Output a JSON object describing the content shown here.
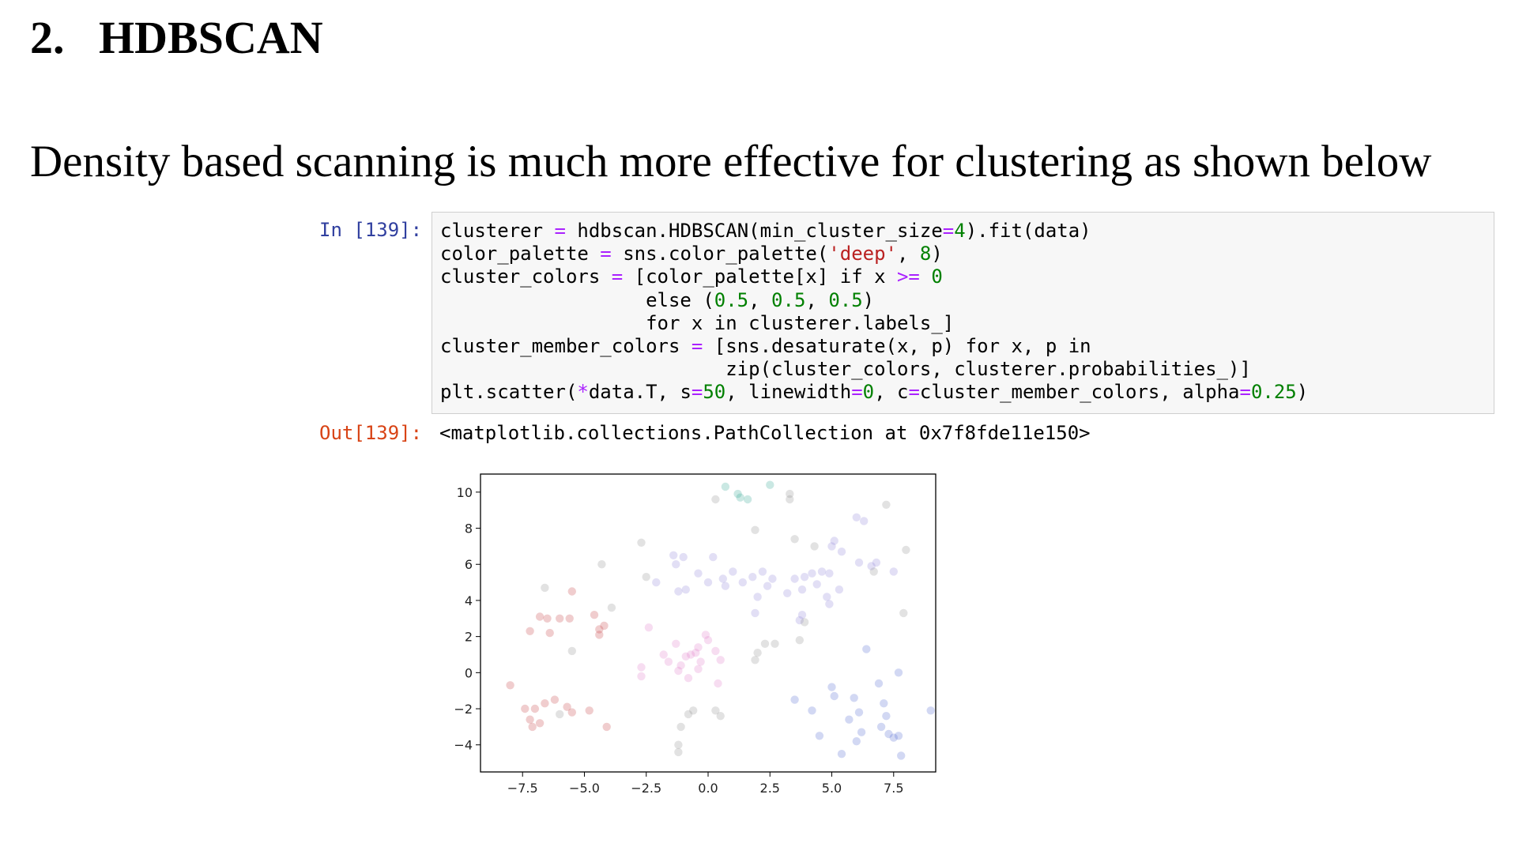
{
  "section": {
    "number": "2.",
    "title": "HDBSCAN"
  },
  "intro_text": "Density based scanning is much more effective for clustering as shown below",
  "cell_in": {
    "prompt": "In [139]:",
    "code_lines": [
      "clusterer = hdbscan.HDBSCAN(min_cluster_size=4).fit(data)",
      "color_palette = sns.color_palette('deep', 8)",
      "cluster_colors = [color_palette[x] if x >= 0",
      "                  else (0.5, 0.5, 0.5)",
      "                  for x in clusterer.labels_]",
      "cluster_member_colors = [sns.desaturate(x, p) for x, p in",
      "                         zip(cluster_colors, clusterer.probabilities_)]",
      "plt.scatter(*data.T, s=50, linewidth=0, c=cluster_member_colors, alpha=0.25)"
    ]
  },
  "cell_out": {
    "prompt": "Out[139]:",
    "text": "<matplotlib.collections.PathCollection at 0x7f8fde11e150>"
  },
  "colors": {
    "noise": "#8a8a8a",
    "pink": "#e077c9",
    "purple": "#8a80d8",
    "blue": "#4c62d0",
    "red": "#c4393c",
    "teal": "#2aa58f"
  },
  "chart_data": {
    "type": "scatter",
    "xlim": [
      -9.2,
      9.2
    ],
    "ylim": [
      -5.5,
      11.0
    ],
    "xticks": [
      "−7.5",
      "−5.0",
      "−2.5",
      "0.0",
      "2.5",
      "5.0",
      "7.5"
    ],
    "xtick_values": [
      -7.5,
      -5.0,
      -2.5,
      0.0,
      2.5,
      5.0,
      7.5
    ],
    "yticks": [
      "10",
      "8",
      "6",
      "4",
      "2",
      "0",
      "−2",
      "−4"
    ],
    "ytick_values": [
      10,
      8,
      6,
      4,
      2,
      0,
      -2,
      -4
    ],
    "alpha": 0.25,
    "series": [
      {
        "color": "red",
        "points": [
          [
            -6.8,
            3.1
          ],
          [
            -6.5,
            3.0
          ],
          [
            -6.0,
            3.0
          ],
          [
            -5.6,
            3.0
          ],
          [
            -5.5,
            4.5
          ],
          [
            -4.6,
            3.2
          ],
          [
            -4.2,
            2.6
          ],
          [
            -4.4,
            2.1
          ],
          [
            -4.4,
            2.4
          ],
          [
            -7.2,
            2.3
          ],
          [
            -6.4,
            2.2
          ],
          [
            -8.0,
            -0.7
          ],
          [
            -7.4,
            -2.0
          ],
          [
            -7.0,
            -2.0
          ],
          [
            -6.6,
            -1.7
          ],
          [
            -6.2,
            -1.5
          ],
          [
            -5.7,
            -1.9
          ],
          [
            -5.5,
            -2.2
          ],
          [
            -7.2,
            -2.6
          ],
          [
            -6.8,
            -2.8
          ],
          [
            -7.1,
            -3.0
          ],
          [
            -4.8,
            -2.1
          ],
          [
            -4.1,
            -3.0
          ]
        ]
      },
      {
        "color": "pink",
        "points": [
          [
            -2.4,
            2.5
          ],
          [
            -2.7,
            0.3
          ],
          [
            -2.7,
            -0.2
          ],
          [
            -1.8,
            1.0
          ],
          [
            -1.6,
            0.6
          ],
          [
            -1.3,
            1.6
          ],
          [
            -1.1,
            0.4
          ],
          [
            -0.9,
            0.9
          ],
          [
            -0.7,
            1.0
          ],
          [
            -0.5,
            1.1
          ],
          [
            -0.4,
            1.4
          ],
          [
            -0.3,
            0.6
          ],
          [
            -0.1,
            2.1
          ],
          [
            0.0,
            1.8
          ],
          [
            0.3,
            1.2
          ],
          [
            0.5,
            0.7
          ],
          [
            -0.8,
            -0.3
          ],
          [
            -0.4,
            0.2
          ],
          [
            0.4,
            -0.6
          ],
          [
            -1.2,
            0.1
          ]
        ]
      },
      {
        "color": "purple",
        "points": [
          [
            -1.4,
            6.5
          ],
          [
            -1.3,
            6.0
          ],
          [
            -1.0,
            6.4
          ],
          [
            -1.2,
            4.5
          ],
          [
            -0.9,
            4.6
          ],
          [
            -0.4,
            5.5
          ],
          [
            0.0,
            5.0
          ],
          [
            0.2,
            6.4
          ],
          [
            0.6,
            5.2
          ],
          [
            0.7,
            4.8
          ],
          [
            1.0,
            5.6
          ],
          [
            1.4,
            5.0
          ],
          [
            -2.1,
            5.0
          ],
          [
            1.8,
            5.3
          ],
          [
            2.2,
            5.6
          ],
          [
            2.0,
            4.2
          ],
          [
            2.4,
            4.8
          ],
          [
            2.6,
            5.2
          ],
          [
            3.2,
            4.4
          ],
          [
            3.5,
            5.2
          ],
          [
            3.8,
            4.6
          ],
          [
            3.9,
            5.3
          ],
          [
            4.2,
            5.5
          ],
          [
            4.4,
            4.9
          ],
          [
            4.6,
            5.6
          ],
          [
            4.8,
            4.2
          ],
          [
            4.9,
            5.5
          ],
          [
            5.0,
            7.0
          ],
          [
            5.1,
            7.3
          ],
          [
            5.3,
            4.6
          ],
          [
            5.4,
            6.7
          ],
          [
            6.1,
            6.1
          ],
          [
            6.6,
            5.9
          ],
          [
            6.8,
            6.1
          ],
          [
            7.5,
            5.6
          ],
          [
            6.0,
            8.6
          ],
          [
            6.3,
            8.4
          ],
          [
            3.8,
            3.2
          ],
          [
            4.9,
            3.8
          ],
          [
            1.9,
            3.3
          ],
          [
            3.7,
            2.9
          ]
        ]
      },
      {
        "color": "blue",
        "points": [
          [
            3.5,
            -1.5
          ],
          [
            4.2,
            -2.1
          ],
          [
            4.5,
            -3.5
          ],
          [
            5.0,
            -0.8
          ],
          [
            5.1,
            -1.3
          ],
          [
            5.4,
            -4.5
          ],
          [
            5.7,
            -2.6
          ],
          [
            5.9,
            -1.4
          ],
          [
            6.1,
            -2.2
          ],
          [
            6.2,
            -3.3
          ],
          [
            6.0,
            -3.8
          ],
          [
            6.9,
            -0.6
          ],
          [
            7.1,
            -1.7
          ],
          [
            7.2,
            -2.4
          ],
          [
            7.0,
            -3.0
          ],
          [
            7.3,
            -3.4
          ],
          [
            7.5,
            -3.6
          ],
          [
            7.7,
            -3.5
          ],
          [
            7.7,
            0.0
          ],
          [
            7.8,
            -4.6
          ],
          [
            9.0,
            -2.1
          ],
          [
            6.4,
            1.3
          ]
        ]
      },
      {
        "color": "teal",
        "points": [
          [
            0.7,
            10.3
          ],
          [
            1.3,
            9.7
          ],
          [
            1.2,
            9.9
          ],
          [
            2.5,
            10.4
          ],
          [
            1.6,
            9.6
          ]
        ]
      },
      {
        "color": "noise",
        "points": [
          [
            3.3,
            9.9
          ],
          [
            3.3,
            9.6
          ],
          [
            0.3,
            9.6
          ],
          [
            7.2,
            9.3
          ],
          [
            1.9,
            7.9
          ],
          [
            3.5,
            7.4
          ],
          [
            4.3,
            7.0
          ],
          [
            -2.7,
            7.2
          ],
          [
            8.0,
            6.8
          ],
          [
            -4.3,
            6.0
          ],
          [
            -2.5,
            5.3
          ],
          [
            6.7,
            5.6
          ],
          [
            -3.9,
            3.6
          ],
          [
            -5.5,
            1.2
          ],
          [
            -6.6,
            4.7
          ],
          [
            1.9,
            0.7
          ],
          [
            2.3,
            1.6
          ],
          [
            2.7,
            1.6
          ],
          [
            3.7,
            1.8
          ],
          [
            -0.8,
            -2.3
          ],
          [
            -0.6,
            -2.1
          ],
          [
            0.3,
            -2.1
          ],
          [
            0.5,
            -2.4
          ],
          [
            -1.1,
            -3.0
          ],
          [
            -1.2,
            -4.0
          ],
          [
            -1.2,
            -4.4
          ],
          [
            3.9,
            2.8
          ],
          [
            7.9,
            3.3
          ],
          [
            -6.0,
            -2.3
          ],
          [
            2.0,
            1.1
          ]
        ]
      }
    ]
  }
}
